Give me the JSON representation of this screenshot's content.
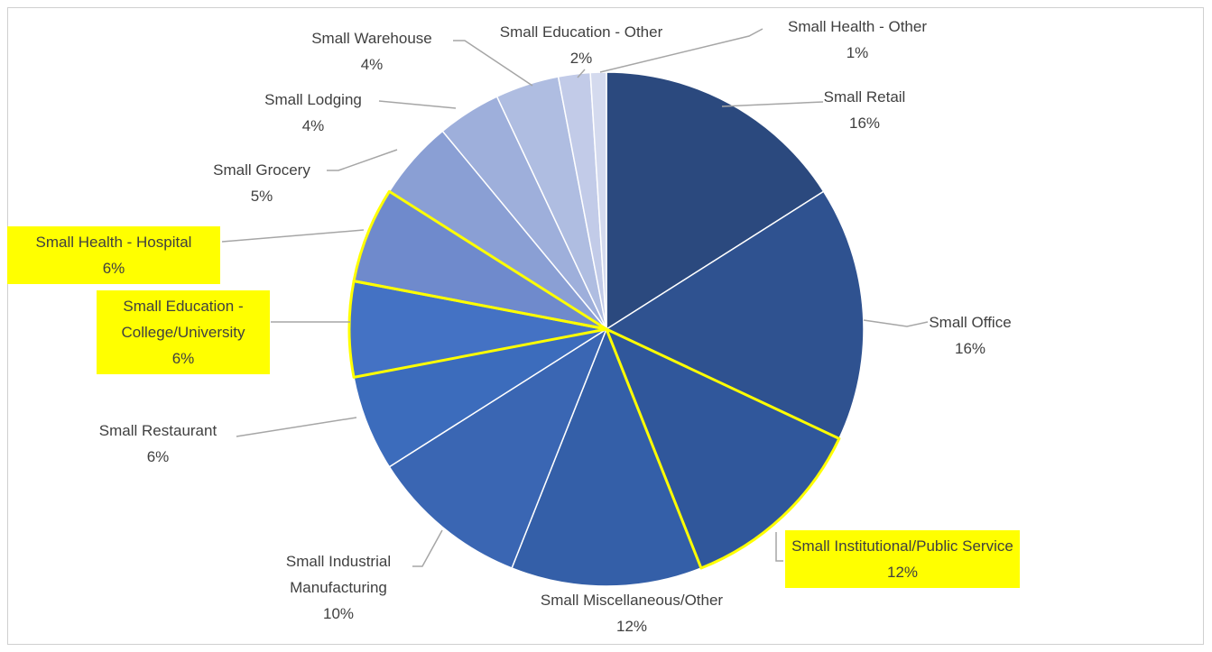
{
  "chart_data": {
    "type": "pie",
    "categories": [
      "Small Retail",
      "Small Office",
      "Small Institutional/Public Service",
      "Small Miscellaneous/Other",
      "Small Industrial Manufacturing",
      "Small Restaurant",
      "Small Education - College/University",
      "Small Health - Hospital",
      "Small Grocery",
      "Small Lodging",
      "Small Warehouse",
      "Small Education - Other",
      "Small Health - Other"
    ],
    "values": [
      16,
      16,
      12,
      12,
      10,
      6,
      6,
      6,
      5,
      4,
      4,
      2,
      1
    ],
    "value_labels": [
      "16%",
      "16%",
      "12%",
      "12%",
      "10%",
      "6%",
      "6%",
      "6%",
      "5%",
      "4%",
      "4%",
      "2%",
      "1%"
    ],
    "colors": [
      "#2b497e",
      "#2f5290",
      "#30579b",
      "#345fa8",
      "#3a66b3",
      "#3c6cbc",
      "#4472c4",
      "#6f8acc",
      "#8a9fd4",
      "#9eafdb",
      "#afbde1",
      "#c2cbe8",
      "#d4daee"
    ],
    "highlighted": [
      false,
      false,
      true,
      false,
      false,
      false,
      true,
      true,
      false,
      false,
      false,
      false,
      false
    ],
    "highlight_color": "#ffff00"
  }
}
